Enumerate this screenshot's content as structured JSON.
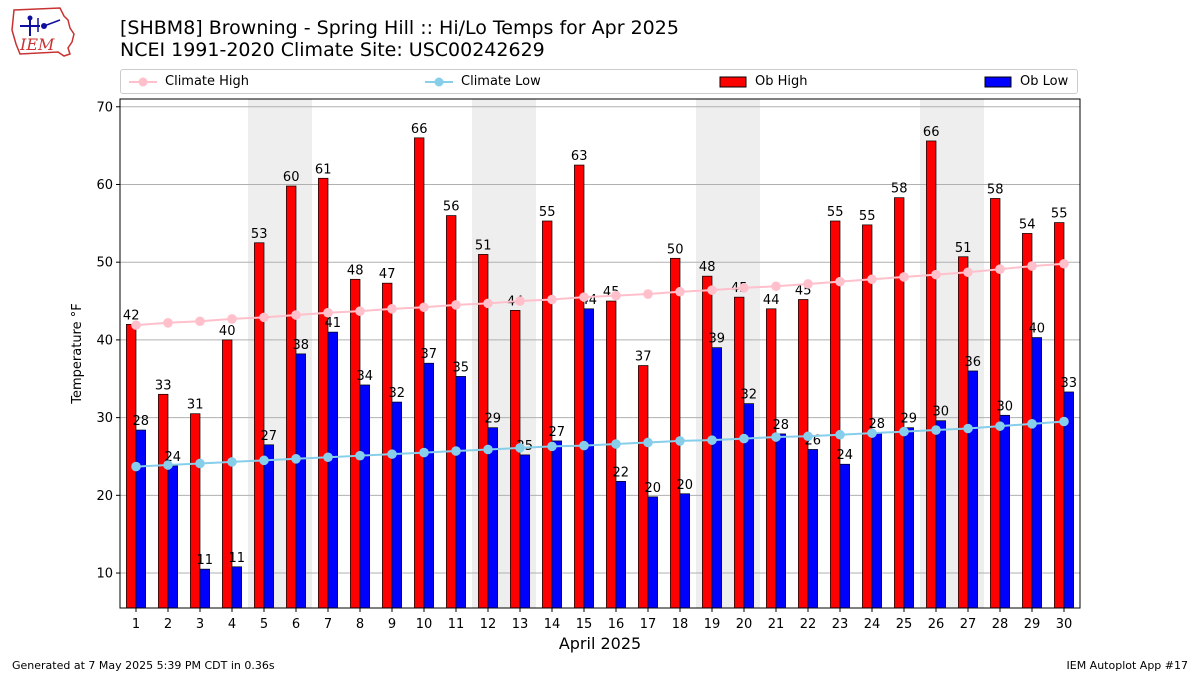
{
  "header": {
    "logo_text": "IEM",
    "title_line1": "[SHBM8] Browning - Spring Hill :: Hi/Lo Temps for Apr 2025",
    "title_line2": "NCEI 1991-2020 Climate Site: USC00242629"
  },
  "legend": [
    {
      "label": "Climate High",
      "kind": "line",
      "color": "#ffc0cb"
    },
    {
      "label": "Climate Low",
      "kind": "line",
      "color": "#87ceeb"
    },
    {
      "label": "Ob High",
      "kind": "bar",
      "color": "#ff0000"
    },
    {
      "label": "Ob Low",
      "kind": "bar",
      "color": "#0000ff"
    }
  ],
  "footer": {
    "left": "Generated at 7 May 2025 5:39 PM CDT in 0.36s",
    "right": "IEM Autoplot App #17"
  },
  "chart_data": {
    "type": "bar",
    "xlabel": "April 2025",
    "ylabel": "Temperature °F",
    "ylim": [
      5.5,
      71
    ],
    "yticks": [
      10,
      20,
      30,
      40,
      50,
      60,
      70
    ],
    "grid": true,
    "legend_position": "top",
    "weekend_shading_days": [
      5,
      6,
      12,
      13,
      19,
      20,
      26,
      27
    ],
    "shading_color": "#eeeeee",
    "categories": [
      1,
      2,
      3,
      4,
      5,
      6,
      7,
      8,
      9,
      10,
      11,
      12,
      13,
      14,
      15,
      16,
      17,
      18,
      19,
      20,
      21,
      22,
      23,
      24,
      25,
      26,
      27,
      28,
      29,
      30
    ],
    "series": [
      {
        "name": "Ob High",
        "kind": "bar",
        "color": "#ff0000",
        "values": [
          42,
          33,
          31,
          40,
          53,
          60,
          61,
          48,
          47,
          66,
          56,
          51,
          44,
          55,
          63,
          45,
          37,
          50,
          48,
          45,
          44,
          45,
          55,
          55,
          58,
          66,
          51,
          58,
          54,
          55
        ],
        "heights": [
          42,
          33,
          30.5,
          40,
          52.5,
          59.8,
          60.8,
          47.8,
          47.3,
          66,
          56,
          51,
          43.8,
          55.3,
          62.5,
          45,
          36.7,
          50.5,
          48.2,
          45.5,
          44,
          45.2,
          55.3,
          54.8,
          58.3,
          65.6,
          50.7,
          58.2,
          53.7,
          55.1
        ]
      },
      {
        "name": "Ob Low",
        "kind": "bar",
        "color": "#0000ff",
        "values": [
          28,
          24,
          11,
          11,
          27,
          38,
          41,
          34,
          32,
          37,
          35,
          29,
          25,
          27,
          44,
          22,
          20,
          20,
          39,
          32,
          28,
          26,
          24,
          28,
          29,
          30,
          36,
          30,
          40,
          33
        ],
        "heights": [
          28.4,
          23.8,
          10.5,
          10.8,
          26.5,
          38.2,
          41,
          34.2,
          32,
          37,
          35.3,
          28.7,
          25.2,
          27,
          44,
          21.8,
          19.8,
          20.2,
          39,
          31.8,
          27.9,
          25.9,
          24,
          28,
          28.7,
          29.6,
          36,
          30.3,
          40.3,
          33.3
        ]
      },
      {
        "name": "Climate High",
        "kind": "line",
        "color": "#ffc0cb",
        "values": [
          41.9,
          42.2,
          42.4,
          42.7,
          42.9,
          43.2,
          43.5,
          43.7,
          44.0,
          44.2,
          44.5,
          44.7,
          45.0,
          45.2,
          45.5,
          45.7,
          45.9,
          46.2,
          46.4,
          46.7,
          46.9,
          47.2,
          47.5,
          47.8,
          48.1,
          48.4,
          48.7,
          49.1,
          49.5,
          49.8
        ]
      },
      {
        "name": "Climate Low",
        "kind": "line",
        "color": "#87ceeb",
        "values": [
          23.7,
          23.9,
          24.1,
          24.3,
          24.5,
          24.7,
          24.9,
          25.1,
          25.3,
          25.5,
          25.7,
          25.9,
          26.1,
          26.3,
          26.4,
          26.6,
          26.8,
          27.0,
          27.1,
          27.3,
          27.5,
          27.6,
          27.8,
          28.0,
          28.2,
          28.4,
          28.6,
          28.9,
          29.2,
          29.5
        ]
      }
    ]
  }
}
